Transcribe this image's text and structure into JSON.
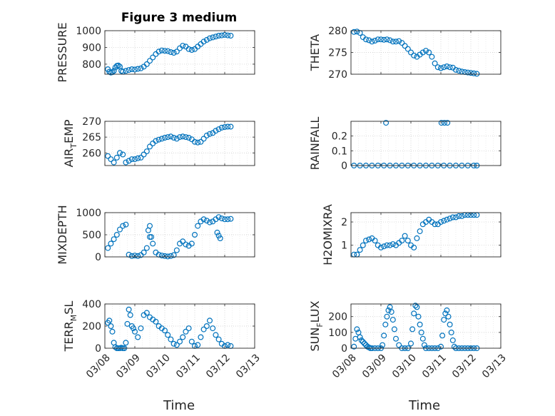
{
  "figure": {
    "title": "Figure 3 medium",
    "xlabel": "Time",
    "x_tick_labels": [
      "03/08",
      "03/09",
      "03/10",
      "03/11",
      "03/12",
      "03/13"
    ],
    "marker_color": "#0072BD"
  },
  "chart_data": [
    {
      "type": "scatter",
      "name": "pressure",
      "ylabel": "PRESSURE",
      "xlim": [
        0,
        5
      ],
      "ylim": [
        740,
        1000
      ],
      "yticks": [
        800,
        900,
        1000
      ],
      "x": [
        0.1,
        0.15,
        0.2,
        0.25,
        0.3,
        0.35,
        0.4,
        0.45,
        0.5,
        0.55,
        0.6,
        0.7,
        0.8,
        0.9,
        1.0,
        1.1,
        1.2,
        1.3,
        1.4,
        1.5,
        1.6,
        1.7,
        1.8,
        1.9,
        2.0,
        2.1,
        2.2,
        2.3,
        2.4,
        2.5,
        2.6,
        2.7,
        2.8,
        2.9,
        3.0,
        3.1,
        3.2,
        3.3,
        3.4,
        3.5,
        3.6,
        3.7,
        3.8,
        3.9,
        4.0,
        4.1,
        4.2
      ],
      "y": [
        770,
        755,
        750,
        752,
        760,
        780,
        790,
        792,
        785,
        760,
        755,
        760,
        765,
        770,
        768,
        772,
        775,
        785,
        800,
        820,
        840,
        860,
        875,
        882,
        880,
        878,
        872,
        868,
        875,
        895,
        910,
        905,
        890,
        885,
        890,
        905,
        920,
        935,
        945,
        955,
        960,
        965,
        970,
        972,
        975,
        972,
        970
      ]
    },
    {
      "type": "scatter",
      "name": "theta",
      "ylabel": "THETA",
      "xlim": [
        0,
        5
      ],
      "ylim": [
        270,
        280
      ],
      "yticks": [
        270,
        275,
        280
      ],
      "x": [
        0.1,
        0.2,
        0.3,
        0.4,
        0.5,
        0.6,
        0.7,
        0.8,
        0.9,
        1.0,
        1.1,
        1.2,
        1.3,
        1.4,
        1.5,
        1.6,
        1.7,
        1.8,
        1.9,
        2.0,
        2.1,
        2.2,
        2.3,
        2.4,
        2.5,
        2.6,
        2.7,
        2.8,
        2.9,
        3.0,
        3.1,
        3.2,
        3.3,
        3.4,
        3.5,
        3.6,
        3.7,
        3.8,
        3.9,
        4.0,
        4.1,
        4.2
      ],
      "y": [
        279.7,
        279.8,
        279.5,
        278.5,
        278.0,
        277.8,
        277.5,
        277.7,
        278.0,
        278.0,
        277.9,
        278.0,
        277.8,
        277.5,
        277.5,
        277.6,
        277.2,
        276.5,
        275.8,
        275.0,
        274.3,
        274.0,
        274.5,
        275.0,
        275.4,
        275.0,
        274.0,
        272.5,
        271.6,
        271.4,
        271.6,
        271.8,
        271.6,
        271.5,
        271.0,
        270.8,
        270.6,
        270.5,
        270.4,
        270.3,
        270.2,
        270.1
      ]
    },
    {
      "type": "scatter",
      "name": "air_temp",
      "ylabel": "AIR",
      "ylabel_sub": "T",
      "ylabel_tail": "EMP",
      "xlim": [
        0,
        5
      ],
      "ylim": [
        256,
        270
      ],
      "yticks": [
        260,
        265,
        270
      ],
      "x": [
        0.1,
        0.2,
        0.3,
        0.4,
        0.5,
        0.6,
        0.7,
        0.8,
        0.9,
        1.0,
        1.1,
        1.2,
        1.3,
        1.4,
        1.5,
        1.6,
        1.7,
        1.8,
        1.9,
        2.0,
        2.1,
        2.2,
        2.3,
        2.4,
        2.5,
        2.6,
        2.7,
        2.8,
        2.9,
        3.0,
        3.1,
        3.2,
        3.3,
        3.4,
        3.5,
        3.6,
        3.7,
        3.8,
        3.9,
        4.0,
        4.1,
        4.2
      ],
      "y": [
        259.0,
        258.0,
        257.0,
        258.5,
        260.0,
        259.5,
        257.0,
        257.5,
        258.0,
        258.0,
        258.3,
        258.5,
        259.5,
        260.5,
        262.0,
        263.0,
        263.8,
        264.2,
        264.5,
        264.8,
        265.0,
        265.2,
        264.8,
        264.5,
        265.0,
        265.2,
        265.0,
        264.8,
        264.3,
        263.5,
        263.3,
        263.5,
        264.5,
        265.5,
        266.0,
        266.3,
        267.0,
        267.5,
        268.0,
        268.2,
        268.3,
        268.3
      ]
    },
    {
      "type": "scatter",
      "name": "rainfall",
      "ylabel": "RAINFALL",
      "xlim": [
        0,
        5
      ],
      "ylim": [
        0,
        0.3
      ],
      "yticks": [
        0,
        0.1,
        0.2
      ],
      "x": [
        0.1,
        0.3,
        0.5,
        0.7,
        0.9,
        1.1,
        1.3,
        1.5,
        1.7,
        1.9,
        2.1,
        2.3,
        2.5,
        2.7,
        2.9,
        3.1,
        3.3,
        3.5,
        3.7,
        3.9,
        4.1,
        4.2,
        1.17,
        3.02,
        3.12,
        3.22
      ],
      "y": [
        0,
        0,
        0,
        0,
        0,
        0,
        0,
        0,
        0,
        0,
        0,
        0,
        0,
        0,
        0,
        0,
        0,
        0,
        0,
        0,
        0,
        0,
        0.29,
        0.29,
        0.29,
        0.29
      ]
    },
    {
      "type": "scatter",
      "name": "mixdepth",
      "ylabel": "MIXDEPTH",
      "xlim": [
        0,
        5
      ],
      "ylim": [
        0,
        1000
      ],
      "yticks": [
        0,
        500,
        1000
      ],
      "x": [
        0.1,
        0.2,
        0.3,
        0.4,
        0.5,
        0.6,
        0.7,
        0.8,
        0.9,
        1.0,
        1.1,
        1.2,
        1.3,
        1.4,
        1.5,
        1.6,
        1.7,
        1.8,
        1.9,
        2.0,
        2.1,
        2.2,
        2.3,
        2.4,
        2.5,
        2.6,
        2.7,
        2.8,
        2.9,
        3.0,
        3.1,
        3.2,
        3.3,
        3.4,
        3.5,
        3.6,
        3.7,
        3.8,
        3.9,
        4.0,
        4.1,
        4.2,
        1.45,
        1.5,
        1.55,
        3.75,
        3.8,
        3.85
      ],
      "y": [
        200,
        300,
        400,
        500,
        620,
        700,
        730,
        50,
        20,
        30,
        20,
        40,
        100,
        200,
        450,
        300,
        100,
        50,
        30,
        20,
        10,
        20,
        40,
        150,
        300,
        350,
        280,
        250,
        300,
        500,
        700,
        800,
        850,
        820,
        780,
        800,
        850,
        900,
        870,
        850,
        850,
        860,
        600,
        700,
        450,
        550,
        480,
        420
      ]
    },
    {
      "type": "scatter",
      "name": "h2omixra",
      "ylabel": "H2OMIXRA",
      "xlim": [
        0,
        5
      ],
      "ylim": [
        0.5,
        2.4
      ],
      "yticks": [
        1,
        2
      ],
      "x": [
        0.1,
        0.2,
        0.3,
        0.4,
        0.5,
        0.6,
        0.7,
        0.8,
        0.9,
        1.0,
        1.1,
        1.2,
        1.3,
        1.4,
        1.5,
        1.6,
        1.7,
        1.8,
        1.9,
        2.0,
        2.1,
        2.2,
        2.3,
        2.4,
        2.5,
        2.6,
        2.7,
        2.8,
        2.9,
        3.0,
        3.1,
        3.2,
        3.3,
        3.4,
        3.5,
        3.6,
        3.7,
        3.8,
        3.9,
        4.0,
        4.1,
        4.2
      ],
      "y": [
        0.6,
        0.6,
        0.8,
        1.0,
        1.2,
        1.25,
        1.3,
        1.2,
        1.0,
        0.9,
        0.95,
        1.0,
        1.0,
        1.05,
        1.0,
        1.1,
        1.2,
        1.4,
        1.2,
        1.0,
        0.9,
        1.3,
        1.6,
        1.9,
        2.0,
        2.1,
        2.0,
        1.9,
        1.9,
        2.0,
        2.05,
        2.1,
        2.15,
        2.2,
        2.2,
        2.25,
        2.25,
        2.3,
        2.3,
        2.3,
        2.3,
        2.3
      ]
    },
    {
      "type": "scatter",
      "name": "terrain_msl",
      "ylabel": "TERR",
      "ylabel_sub": "M",
      "ylabel_tail": "SL",
      "xlim": [
        0,
        5
      ],
      "ylim": [
        0,
        400
      ],
      "yticks": [
        0,
        200,
        400
      ],
      "x": [
        0.1,
        0.15,
        0.2,
        0.25,
        0.3,
        0.35,
        0.4,
        0.45,
        0.5,
        0.55,
        0.6,
        0.65,
        0.7,
        0.75,
        0.8,
        0.85,
        0.9,
        0.95,
        1.0,
        1.1,
        1.2,
        1.3,
        1.4,
        1.5,
        1.6,
        1.7,
        1.8,
        1.9,
        2.0,
        2.1,
        2.2,
        2.3,
        2.4,
        2.5,
        2.6,
        2.7,
        2.8,
        2.9,
        3.0,
        3.1,
        3.2,
        3.3,
        3.4,
        3.5,
        3.6,
        3.7,
        3.8,
        3.9,
        4.0,
        4.1,
        4.2
      ],
      "y": [
        230,
        250,
        200,
        150,
        50,
        10,
        0,
        0,
        0,
        5,
        0,
        0,
        50,
        220,
        350,
        300,
        200,
        180,
        150,
        100,
        180,
        300,
        320,
        280,
        260,
        240,
        200,
        180,
        160,
        120,
        80,
        40,
        30,
        60,
        100,
        150,
        180,
        60,
        20,
        30,
        100,
        170,
        200,
        250,
        180,
        120,
        80,
        40,
        20,
        30,
        20
      ]
    },
    {
      "type": "scatter",
      "name": "sun_flux",
      "ylabel": "SUN",
      "ylabel_sub": "F",
      "ylabel_tail": "LUX",
      "xlim": [
        0,
        5
      ],
      "ylim": [
        0,
        280
      ],
      "yticks": [
        0,
        100,
        200
      ],
      "x": [
        0.1,
        0.15,
        0.2,
        0.25,
        0.3,
        0.35,
        0.4,
        0.45,
        0.5,
        0.55,
        0.6,
        0.65,
        0.7,
        0.8,
        0.9,
        1.0,
        1.05,
        1.1,
        1.15,
        1.2,
        1.25,
        1.3,
        1.35,
        1.4,
        1.45,
        1.5,
        1.6,
        1.7,
        1.8,
        1.9,
        2.0,
        2.05,
        2.1,
        2.15,
        2.2,
        2.25,
        2.3,
        2.35,
        2.4,
        2.45,
        2.5,
        2.6,
        2.7,
        2.8,
        2.9,
        3.0,
        3.05,
        3.1,
        3.15,
        3.2,
        3.25,
        3.3,
        3.35,
        3.4,
        3.45,
        3.5,
        3.6,
        3.7,
        3.8,
        3.9,
        4.0,
        4.1,
        4.2
      ],
      "y": [
        10,
        60,
        120,
        100,
        70,
        50,
        40,
        30,
        20,
        10,
        5,
        0,
        0,
        0,
        0,
        0,
        20,
        80,
        150,
        200,
        240,
        260,
        230,
        180,
        120,
        60,
        20,
        0,
        0,
        0,
        30,
        120,
        220,
        270,
        260,
        200,
        150,
        100,
        60,
        20,
        0,
        0,
        0,
        0,
        0,
        10,
        80,
        180,
        220,
        240,
        200,
        150,
        100,
        50,
        10,
        0,
        0,
        0,
        0,
        0,
        0,
        0,
        0
      ]
    }
  ]
}
